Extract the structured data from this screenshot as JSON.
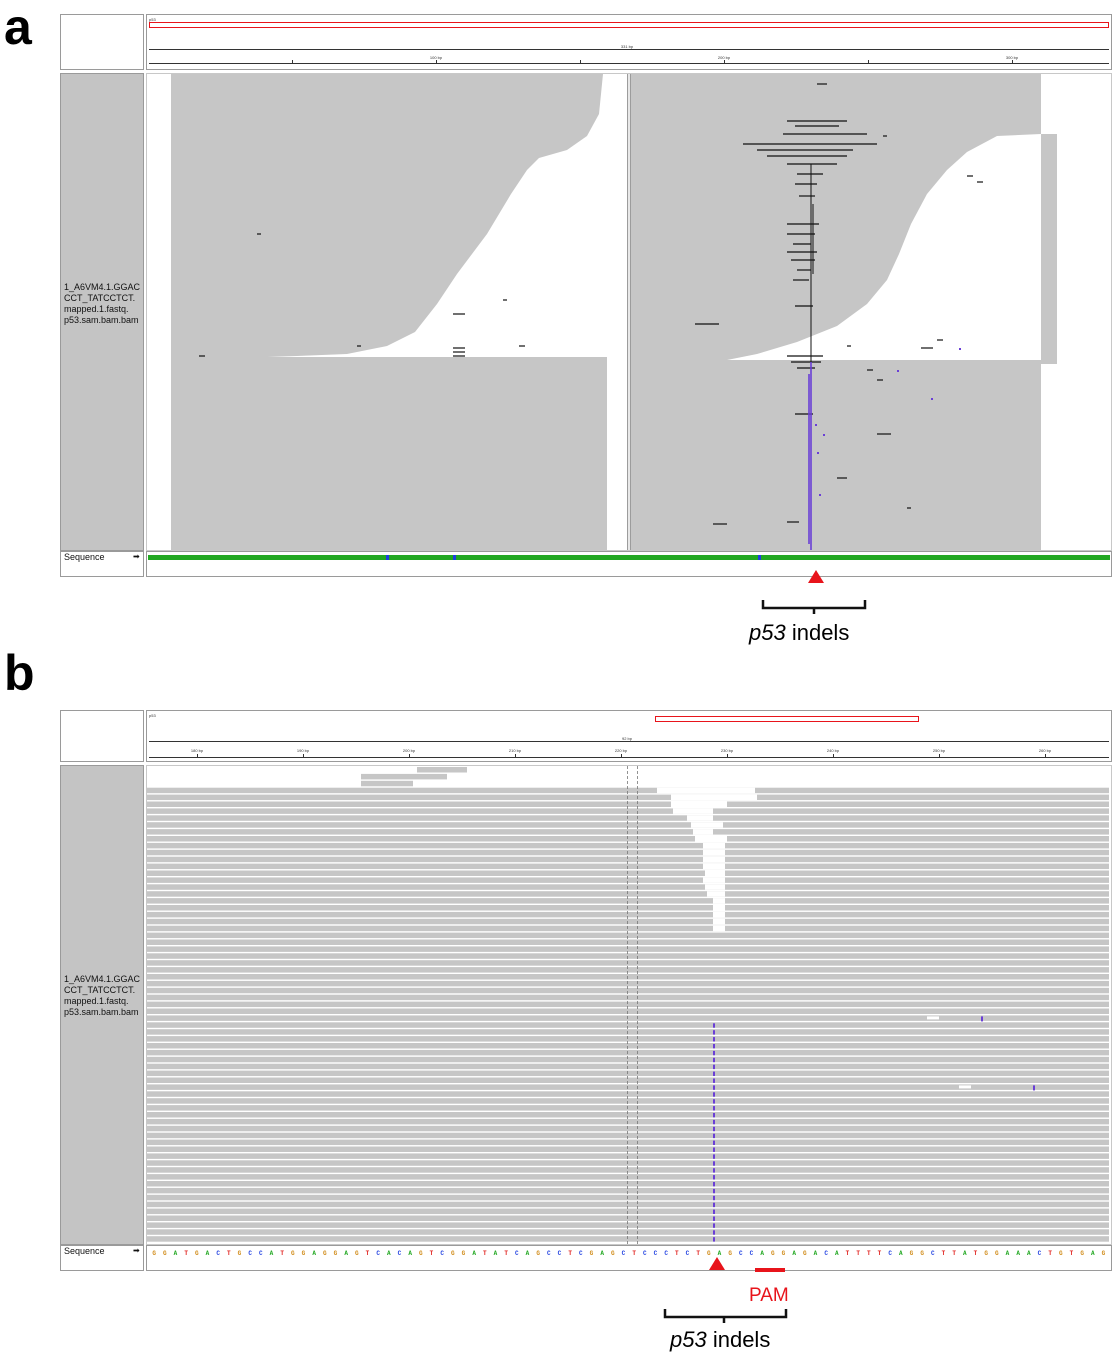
{
  "panel_a": {
    "letter": "a",
    "chrom_label": "p53",
    "ruler_total": "331 bp",
    "ruler_ticks": [
      "100 bp",
      "200 bp",
      "300 bp"
    ],
    "track_label_lines": [
      "1_A6VM4.1.GGAC",
      "CCT_TATCCTCT.",
      "mapped.1.fastq.",
      "p53.sam.bam.bam"
    ],
    "sequence_label": "Sequence",
    "sequence_arrow": "➡",
    "annotation_italic": "p53",
    "annotation_text": " indels"
  },
  "panel_b": {
    "letter": "b",
    "chrom_label": "p53",
    "ruler_total": "92 bp",
    "ruler_ticks": [
      "180 bp",
      "190 bp",
      "200 bp",
      "210 bp",
      "220 bp",
      "230 bp",
      "240 bp",
      "250 bp",
      "260 bp"
    ],
    "track_label_lines": [
      "1_A6VM4.1.GGAC",
      "CCT_TATCCTCT.",
      "mapped.1.fastq.",
      "p53.sam.bam.bam"
    ],
    "sequence_label": "Sequence",
    "sequence_arrow": "➡",
    "sequence_bases": "GGATGACTGCCATGGAGGAGTCACAGTCGGATATCAGCCTCGAGCTCCCTCTGAGCCAGGAGACATTTTCAGGCTTATGGAAACTGTGAG",
    "pam_label": "PAM",
    "annotation_italic": "p53",
    "annotation_text": " indels"
  },
  "colors": {
    "read_gray": "#c6c6c6",
    "insertion_purple": "#6a3fd6",
    "marker_red": "#e8141b",
    "base_A": "#22a822",
    "base_C": "#1f3fe0",
    "base_G": "#d18c1a",
    "base_T": "#e0201c"
  }
}
